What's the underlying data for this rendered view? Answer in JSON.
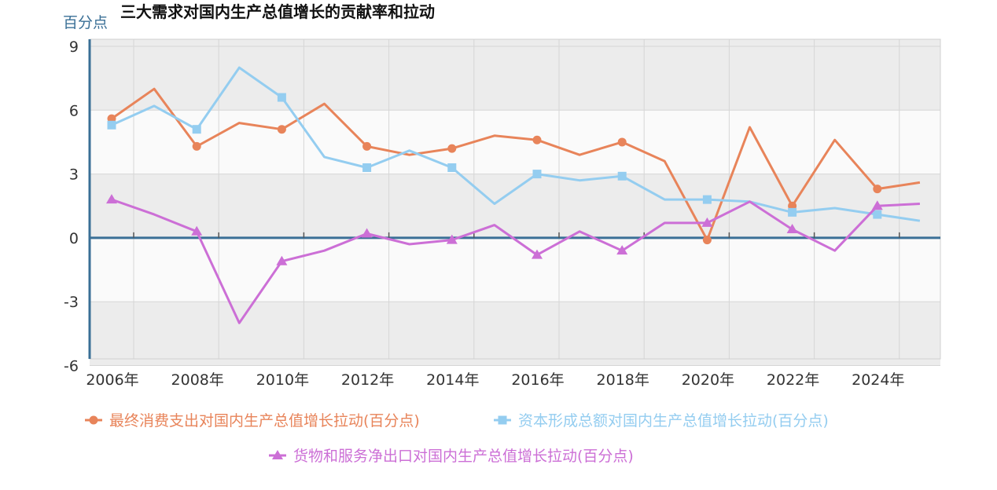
{
  "chart_data": {
    "type": "line",
    "title": "三大需求对国内生产总值增长的贡献率和拉动",
    "ylabel": "百分点",
    "xlabel": "",
    "x": [
      2006,
      2007,
      2008,
      2009,
      2010,
      2011,
      2012,
      2013,
      2014,
      2015,
      2016,
      2017,
      2018,
      2019,
      2020,
      2021,
      2022,
      2023,
      2024,
      2025
    ],
    "x_tick_labels": [
      "2006年",
      "2008年",
      "2010年",
      "2012年",
      "2014年",
      "2016年",
      "2018年",
      "2020年",
      "2022年",
      "2024年"
    ],
    "y_ticks": [
      9,
      6,
      3,
      0,
      -3,
      -6
    ],
    "ylim": [
      -6,
      9
    ],
    "grid": true,
    "legend_position": "bottom",
    "series": [
      {
        "name": "最终消费支出对国内生产总值增长拉动(百分点)",
        "color": "#e8845a",
        "marker": "circle",
        "values": [
          5.6,
          7.0,
          4.3,
          5.4,
          5.1,
          6.3,
          4.3,
          3.9,
          4.2,
          4.8,
          4.6,
          3.9,
          4.5,
          3.6,
          -0.1,
          5.2,
          1.5,
          4.6,
          2.3,
          2.6
        ]
      },
      {
        "name": "资本形成总额对国内生产总值增长拉动(百分点)",
        "color": "#94cdf0",
        "marker": "square",
        "values": [
          5.3,
          6.2,
          5.1,
          8.0,
          6.6,
          3.8,
          3.3,
          4.1,
          3.3,
          1.6,
          3.0,
          2.7,
          2.9,
          1.8,
          1.8,
          1.7,
          1.2,
          1.4,
          1.1,
          0.8
        ]
      },
      {
        "name": "货物和服务净出口对国内生产总值增长拉动(百分点)",
        "color": "#cc6fd6",
        "marker": "triangle",
        "values": [
          1.8,
          1.1,
          0.3,
          -4.0,
          -1.1,
          -0.6,
          0.2,
          -0.3,
          -0.1,
          0.6,
          -0.8,
          0.3,
          -0.6,
          0.7,
          0.7,
          1.7,
          0.4,
          -0.6,
          1.5,
          1.6
        ]
      }
    ]
  }
}
